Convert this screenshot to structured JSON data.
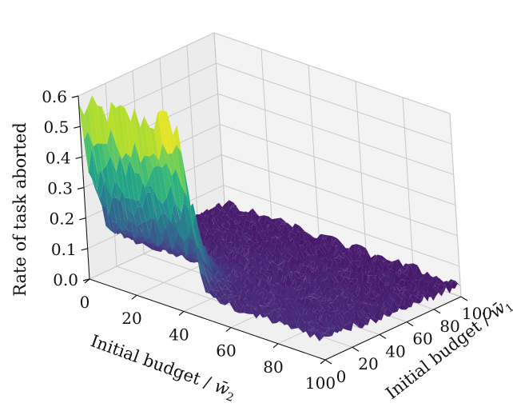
{
  "chart_data": {
    "type": "surface3d",
    "title": "",
    "x_label": "Initial budget / w̄1",
    "y_label": "Initial budget / w̄2",
    "z_label": "Rate of task aborted",
    "x_range": [
      0,
      100
    ],
    "y_range": [
      0,
      100
    ],
    "z_range": [
      0.0,
      0.6
    ],
    "x_ticks": [
      "0",
      "20",
      "40",
      "60",
      "80",
      "100"
    ],
    "y_ticks": [
      "0",
      "20",
      "40",
      "60",
      "80",
      "100"
    ],
    "z_ticks": [
      "0.0",
      "0.1",
      "0.2",
      "0.3",
      "0.4",
      "0.5",
      "0.6"
    ],
    "colormap": "viridis",
    "grid": true,
    "surface_profile": {
      "description_values": [
        {
          "w1": 0,
          "w2": 0,
          "rate": 0.55
        },
        {
          "w1": 0,
          "w2": 10,
          "rate": 0.6
        },
        {
          "w1": 0,
          "w2": 20,
          "rate": 0.6
        },
        {
          "w1": 0,
          "w2": 30,
          "rate": 0.62
        },
        {
          "w1": 0,
          "w2": 40,
          "rate": 0.62
        },
        {
          "w1": 10,
          "w2": 40,
          "rate": 0.35
        },
        {
          "w1": 20,
          "w2": 40,
          "rate": 0.12
        },
        {
          "w1": 40,
          "w2": 40,
          "rate": 0.06
        },
        {
          "w1": 100,
          "w2": 0,
          "rate": 0.08
        },
        {
          "w1": 100,
          "w2": 100,
          "rate": 0.04
        }
      ]
    }
  }
}
